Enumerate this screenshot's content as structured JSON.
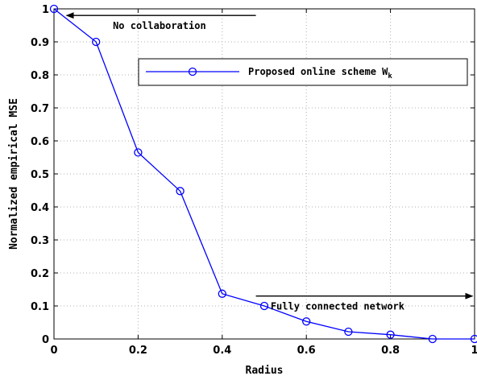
{
  "chart_data": {
    "type": "line",
    "xlabel": "Radius",
    "ylabel": "Normalized empirical MSE",
    "xlim": [
      0,
      1
    ],
    "ylim": [
      0,
      1
    ],
    "grid": true,
    "legend_placement": "upper-right",
    "x_ticks": [
      "0",
      "0.2",
      "0.4",
      "0.6",
      "0.8",
      "1"
    ],
    "y_ticks": [
      "0",
      "0.1",
      "0.2",
      "0.3",
      "0.4",
      "0.5",
      "0.6",
      "0.7",
      "0.8",
      "0.9",
      "1"
    ],
    "series": [
      {
        "name": "Proposed online scheme W",
        "name_subscript": "k",
        "color": "#0000ff",
        "marker": "circle",
        "x": [
          0,
          0.1,
          0.2,
          0.3,
          0.4,
          0.5,
          0.6,
          0.7,
          0.8,
          0.9,
          1.0
        ],
        "y": [
          1.0,
          0.9,
          0.565,
          0.448,
          0.137,
          0.1,
          0.053,
          0.022,
          0.013,
          0.0,
          0.0
        ]
      }
    ],
    "annotations": [
      {
        "text": "No collaboration",
        "arrow_direction": "left",
        "arrow_y": 0.98,
        "arrow_from_x": 0.48,
        "arrow_to_x": 0.03
      },
      {
        "text": "Fully connected network",
        "arrow_direction": "right",
        "arrow_y": 0.13,
        "arrow_from_x": 0.48,
        "arrow_to_x": 0.995
      }
    ]
  }
}
